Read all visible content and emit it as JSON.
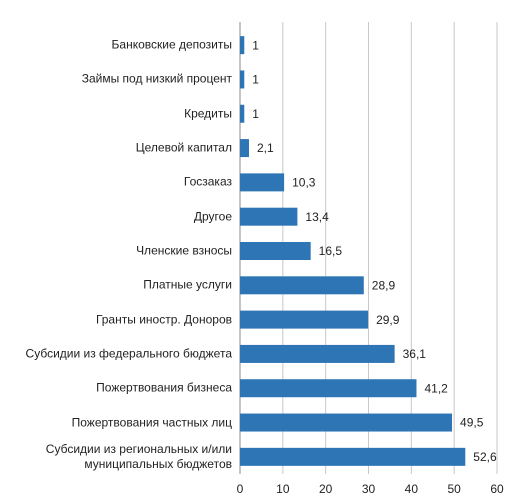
{
  "chart_data": {
    "type": "hbar",
    "categories": [
      "Банковские депозиты",
      "Займы под низкий процент",
      "Кредиты",
      "Целевой капитал",
      "Госзаказ",
      "Другое",
      "Членские взносы",
      "Платные услуги",
      "Гранты иностр. Доноров",
      "Субсидии из федерального бюджета",
      "Пожертвования бизнеса",
      "Пожертвования частных лиц",
      "Субсидии из региональных и/или\nмуниципальных бюджетов"
    ],
    "values": [
      1,
      1,
      1,
      2.1,
      10.3,
      13.4,
      16.5,
      28.9,
      29.9,
      36.1,
      41.2,
      49.5,
      52.6
    ],
    "value_labels": [
      "1",
      "1",
      "1",
      "2,1",
      "10,3",
      "13,4",
      "16,5",
      "28,9",
      "29,9",
      "36,1",
      "41,2",
      "49,5",
      "52,6"
    ],
    "color": "#2e75b6",
    "xlim": [
      0,
      60
    ],
    "xticks": [
      0,
      10,
      20,
      30,
      40,
      50,
      60
    ],
    "grid": true
  }
}
